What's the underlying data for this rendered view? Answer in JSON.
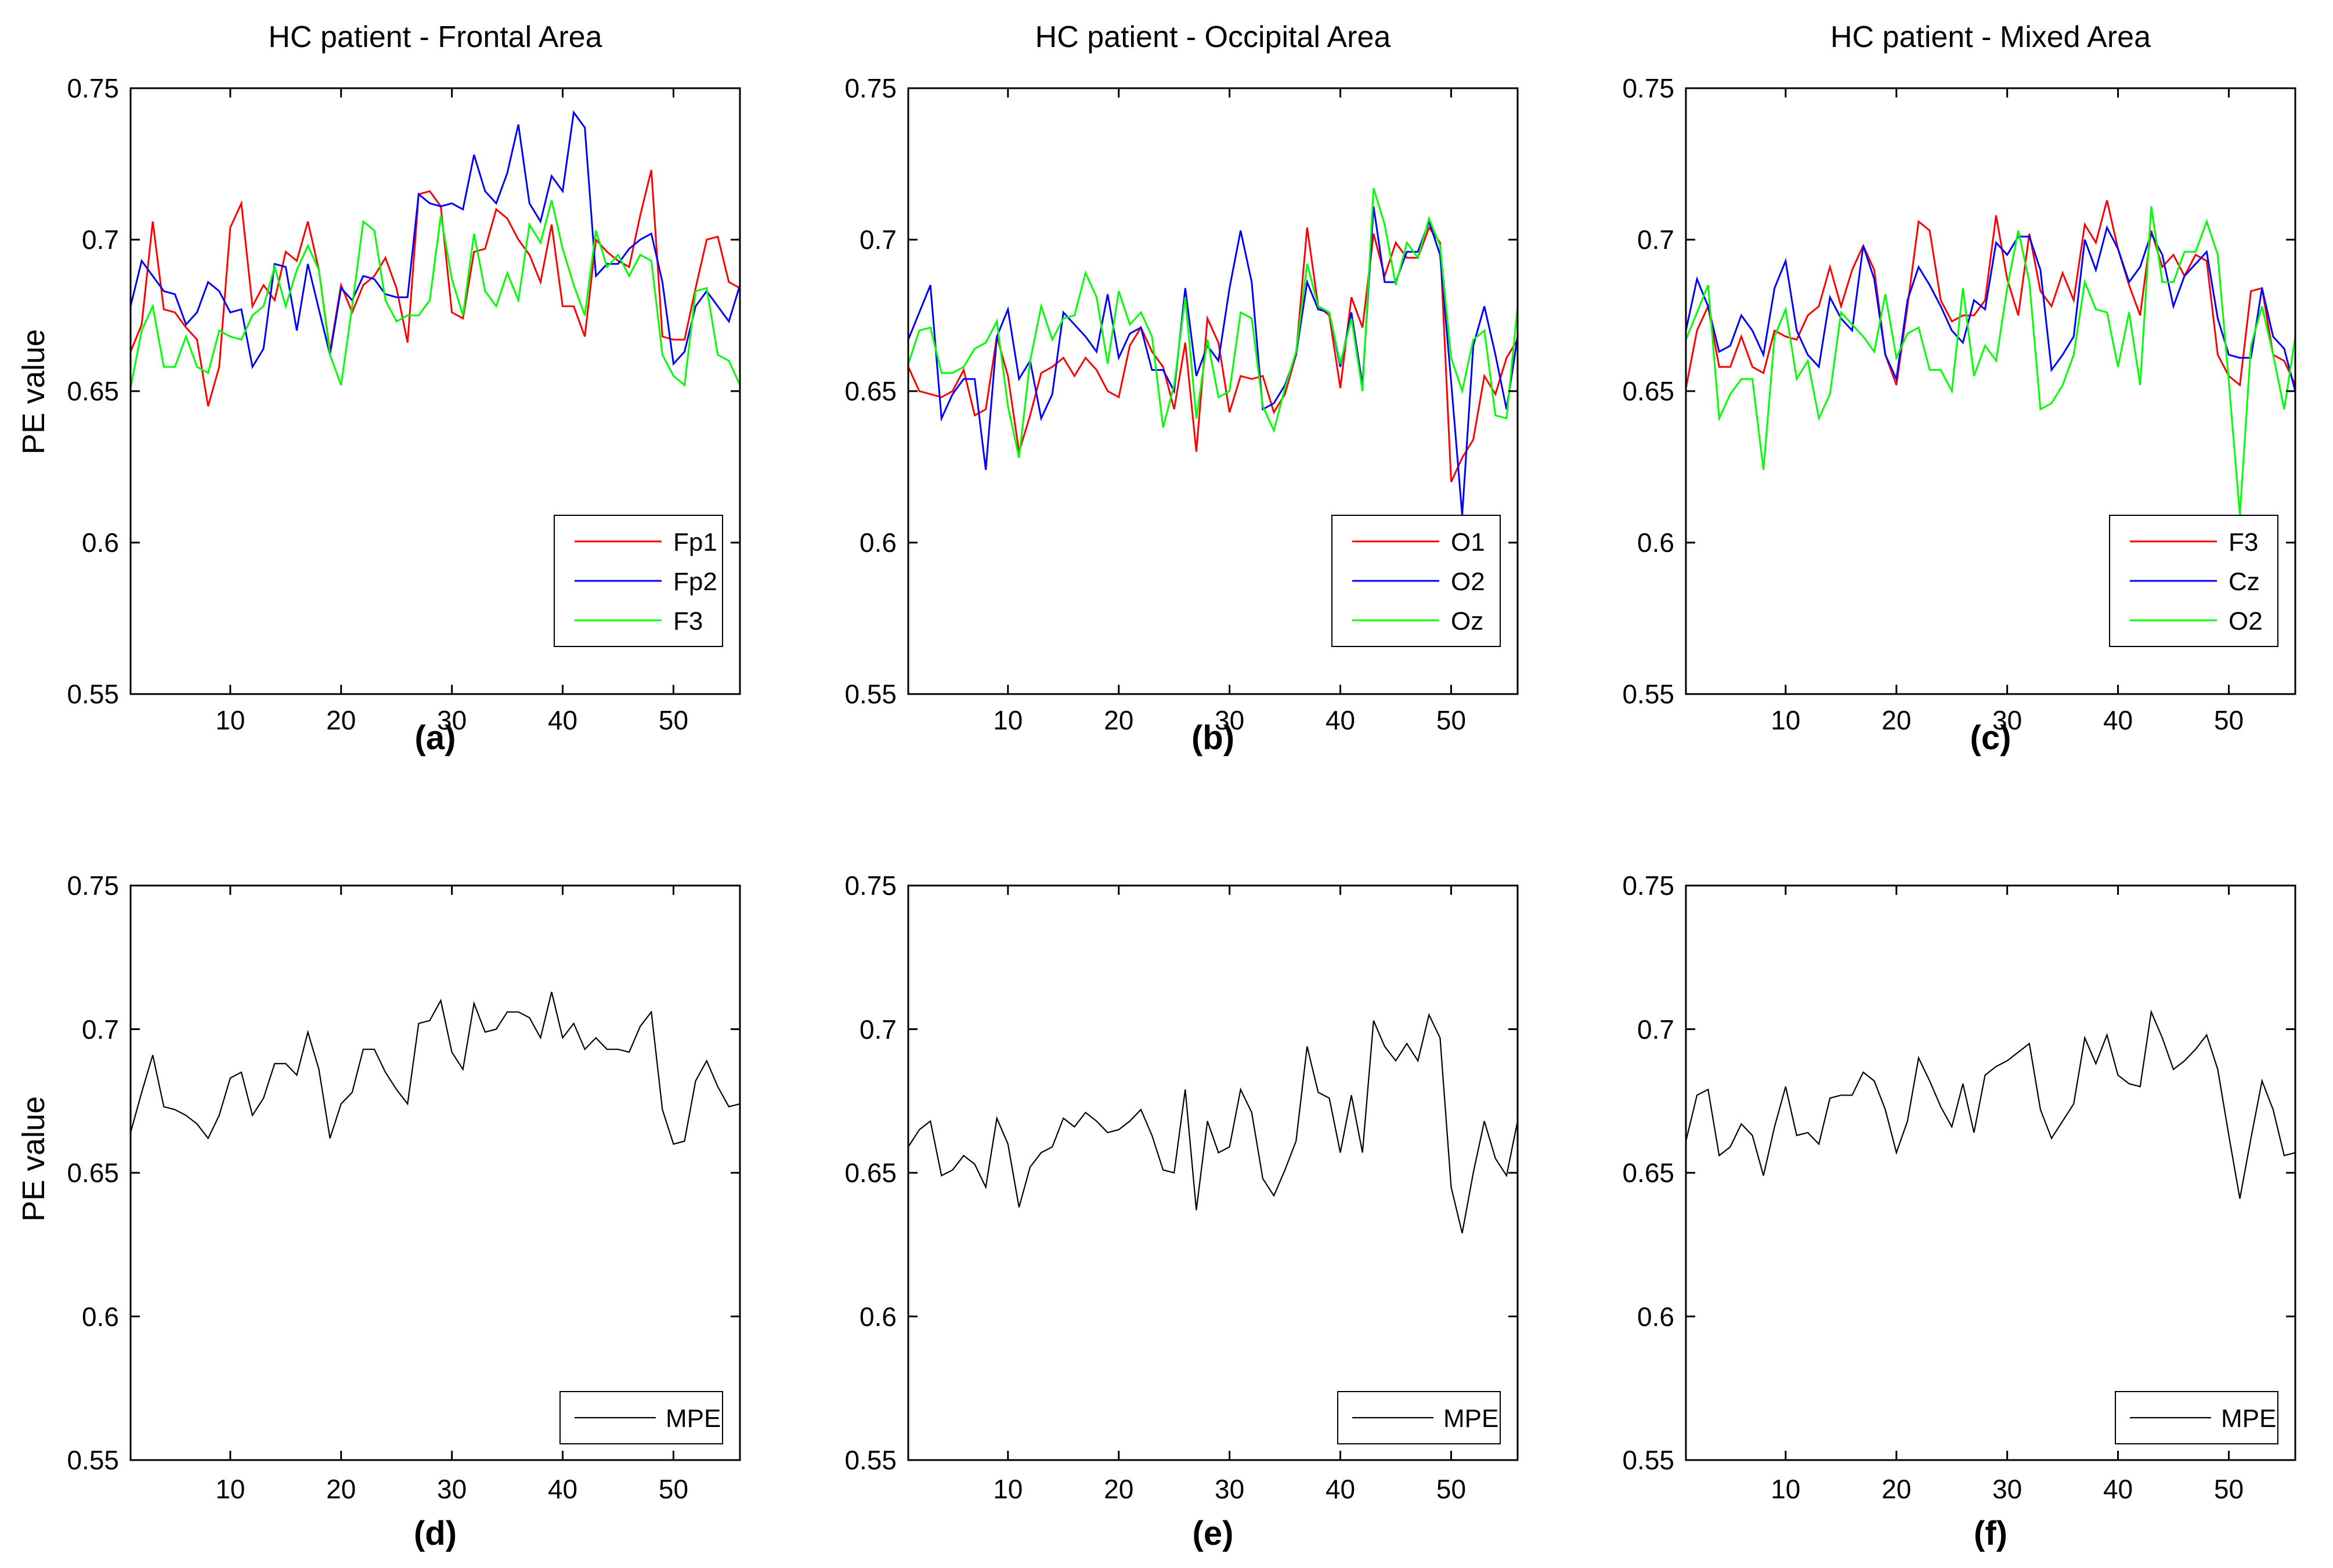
{
  "figure": {
    "background": "#ffffff",
    "axis_color": "#000000",
    "ylabel": "PE value"
  },
  "chart_data": [
    {
      "id": "a",
      "type": "line",
      "title": "HC patient - Frontal Area",
      "letter": "(a)",
      "ylabel": "PE value",
      "xlim": [
        1,
        56
      ],
      "ylim": [
        0.55,
        0.75
      ],
      "xtick_values": [
        10,
        20,
        30,
        40,
        50
      ],
      "xtick_labels": [
        "10",
        "20",
        "30",
        "40",
        "50"
      ],
      "ytick_values": [
        0.55,
        0.6,
        0.65,
        0.7,
        0.75
      ],
      "ytick_labels": [
        "0.55",
        "0.6",
        "0.65",
        "0.7",
        "0.75"
      ],
      "grid": false,
      "legend_position": "bottom-right",
      "series": [
        {
          "name": "Fp1",
          "color": "#ff0000",
          "values": [
            0.663,
            0.672,
            0.706,
            0.677,
            0.676,
            0.671,
            0.667,
            0.645,
            0.658,
            0.704,
            0.712,
            0.678,
            0.685,
            0.68,
            0.696,
            0.693,
            0.706,
            0.69,
            0.663,
            0.685,
            0.676,
            0.685,
            0.688,
            0.694,
            0.684,
            0.666,
            0.715,
            0.716,
            0.711,
            0.676,
            0.674,
            0.696,
            0.697,
            0.71,
            0.707,
            0.7,
            0.695,
            0.686,
            0.705,
            0.678,
            0.678,
            0.668,
            0.7,
            0.696,
            0.693,
            0.691,
            0.708,
            0.723,
            0.668,
            0.667,
            0.667,
            0.684,
            0.7,
            0.701,
            0.686,
            0.684
          ]
        },
        {
          "name": "Fp2",
          "color": "#0000ff",
          "values": [
            0.678,
            0.693,
            0.688,
            0.683,
            0.682,
            0.672,
            0.676,
            0.686,
            0.683,
            0.676,
            0.677,
            0.658,
            0.664,
            0.692,
            0.691,
            0.67,
            0.692,
            0.677,
            0.662,
            0.684,
            0.68,
            0.688,
            0.687,
            0.682,
            0.681,
            0.681,
            0.715,
            0.712,
            0.711,
            0.712,
            0.71,
            0.728,
            0.716,
            0.712,
            0.722,
            0.738,
            0.712,
            0.706,
            0.721,
            0.716,
            0.742,
            0.737,
            0.688,
            0.692,
            0.692,
            0.697,
            0.7,
            0.702,
            0.686,
            0.659,
            0.663,
            0.678,
            0.683,
            0.678,
            0.673,
            0.685
          ]
        },
        {
          "name": "F3",
          "color": "#00ff00",
          "values": [
            0.651,
            0.67,
            0.678,
            0.658,
            0.658,
            0.668,
            0.658,
            0.656,
            0.67,
            0.668,
            0.667,
            0.675,
            0.678,
            0.691,
            0.678,
            0.69,
            0.698,
            0.69,
            0.662,
            0.652,
            0.678,
            0.706,
            0.703,
            0.68,
            0.673,
            0.675,
            0.675,
            0.68,
            0.708,
            0.687,
            0.675,
            0.702,
            0.683,
            0.678,
            0.689,
            0.68,
            0.705,
            0.699,
            0.713,
            0.697,
            0.685,
            0.675,
            0.703,
            0.691,
            0.695,
            0.688,
            0.695,
            0.693,
            0.662,
            0.655,
            0.652,
            0.683,
            0.684,
            0.662,
            0.66,
            0.652
          ]
        }
      ]
    },
    {
      "id": "b",
      "type": "line",
      "title": "HC patient - Occipital Area",
      "letter": "(b)",
      "xlim": [
        1,
        56
      ],
      "ylim": [
        0.55,
        0.75
      ],
      "xtick_values": [
        10,
        20,
        30,
        40,
        50
      ],
      "xtick_labels": [
        "10",
        "20",
        "30",
        "40",
        "50"
      ],
      "ytick_values": [
        0.55,
        0.6,
        0.65,
        0.7,
        0.75
      ],
      "ytick_labels": [
        "0.55",
        "0.6",
        "0.65",
        "0.7",
        "0.75"
      ],
      "grid": false,
      "legend_position": "bottom-right",
      "series": [
        {
          "name": "O1",
          "color": "#ff0000",
          "values": [
            0.658,
            0.65,
            0.649,
            0.648,
            0.65,
            0.657,
            0.642,
            0.644,
            0.668,
            0.655,
            0.63,
            0.642,
            0.656,
            0.658,
            0.661,
            0.655,
            0.661,
            0.657,
            0.65,
            0.648,
            0.665,
            0.671,
            0.663,
            0.658,
            0.644,
            0.666,
            0.63,
            0.674,
            0.666,
            0.643,
            0.655,
            0.654,
            0.655,
            0.643,
            0.649,
            0.662,
            0.704,
            0.678,
            0.675,
            0.651,
            0.681,
            0.671,
            0.702,
            0.688,
            0.699,
            0.694,
            0.694,
            0.704,
            0.699,
            0.62,
            0.628,
            0.634,
            0.655,
            0.649,
            0.661,
            0.667
          ]
        },
        {
          "name": "O2",
          "color": "#0000ff",
          "values": [
            0.667,
            0.676,
            0.685,
            0.641,
            0.649,
            0.654,
            0.654,
            0.624,
            0.668,
            0.677,
            0.654,
            0.66,
            0.641,
            0.649,
            0.676,
            0.672,
            0.668,
            0.663,
            0.682,
            0.661,
            0.669,
            0.671,
            0.657,
            0.657,
            0.65,
            0.684,
            0.655,
            0.665,
            0.66,
            0.684,
            0.703,
            0.686,
            0.644,
            0.646,
            0.652,
            0.662,
            0.686,
            0.677,
            0.676,
            0.658,
            0.676,
            0.652,
            0.711,
            0.686,
            0.686,
            0.696,
            0.696,
            0.706,
            0.695,
            0.653,
            0.609,
            0.665,
            0.678,
            0.662,
            0.644,
            0.668
          ]
        },
        {
          "name": "Oz",
          "color": "#00ff00",
          "values": [
            0.659,
            0.67,
            0.671,
            0.656,
            0.656,
            0.658,
            0.664,
            0.666,
            0.673,
            0.645,
            0.628,
            0.66,
            0.678,
            0.667,
            0.674,
            0.675,
            0.689,
            0.681,
            0.659,
            0.683,
            0.672,
            0.676,
            0.668,
            0.638,
            0.652,
            0.681,
            0.641,
            0.667,
            0.648,
            0.65,
            0.676,
            0.674,
            0.645,
            0.637,
            0.651,
            0.663,
            0.692,
            0.678,
            0.676,
            0.659,
            0.674,
            0.65,
            0.717,
            0.705,
            0.685,
            0.699,
            0.694,
            0.707,
            0.698,
            0.661,
            0.65,
            0.667,
            0.67,
            0.642,
            0.641,
            0.678
          ]
        }
      ]
    },
    {
      "id": "c",
      "type": "line",
      "title": "HC patient - Mixed Area",
      "letter": "(c)",
      "xlim": [
        1,
        56
      ],
      "ylim": [
        0.55,
        0.75
      ],
      "xtick_values": [
        10,
        20,
        30,
        40,
        50
      ],
      "xtick_labels": [
        "10",
        "20",
        "30",
        "40",
        "50"
      ],
      "ytick_values": [
        0.55,
        0.6,
        0.65,
        0.7,
        0.75
      ],
      "ytick_labels": [
        "0.55",
        "0.6",
        "0.65",
        "0.7",
        "0.75"
      ],
      "grid": false,
      "legend_position": "bottom-right",
      "series": [
        {
          "name": "F3",
          "color": "#ff0000",
          "values": [
            0.651,
            0.67,
            0.678,
            0.658,
            0.658,
            0.668,
            0.658,
            0.656,
            0.67,
            0.668,
            0.667,
            0.675,
            0.678,
            0.691,
            0.678,
            0.69,
            0.698,
            0.69,
            0.662,
            0.652,
            0.678,
            0.706,
            0.703,
            0.68,
            0.673,
            0.675,
            0.675,
            0.68,
            0.708,
            0.687,
            0.675,
            0.702,
            0.683,
            0.678,
            0.689,
            0.68,
            0.705,
            0.699,
            0.713,
            0.697,
            0.685,
            0.675,
            0.703,
            0.691,
            0.695,
            0.688,
            0.695,
            0.693,
            0.662,
            0.655,
            0.652,
            0.683,
            0.684,
            0.662,
            0.66,
            0.652
          ]
        },
        {
          "name": "Cz",
          "color": "#0000ff",
          "values": [
            0.67,
            0.687,
            0.678,
            0.663,
            0.665,
            0.675,
            0.67,
            0.662,
            0.684,
            0.693,
            0.67,
            0.662,
            0.658,
            0.681,
            0.674,
            0.67,
            0.698,
            0.687,
            0.662,
            0.654,
            0.68,
            0.691,
            0.685,
            0.678,
            0.67,
            0.666,
            0.68,
            0.677,
            0.699,
            0.695,
            0.701,
            0.701,
            0.69,
            0.657,
            0.662,
            0.668,
            0.7,
            0.69,
            0.704,
            0.697,
            0.686,
            0.691,
            0.702,
            0.695,
            0.678,
            0.688,
            0.692,
            0.696,
            0.674,
            0.662,
            0.661,
            0.661,
            0.684,
            0.668,
            0.664,
            0.65
          ]
        },
        {
          "name": "O2",
          "color": "#00ff00",
          "values": [
            0.667,
            0.676,
            0.685,
            0.641,
            0.649,
            0.654,
            0.654,
            0.624,
            0.668,
            0.677,
            0.654,
            0.66,
            0.641,
            0.649,
            0.676,
            0.672,
            0.668,
            0.663,
            0.682,
            0.661,
            0.669,
            0.671,
            0.657,
            0.657,
            0.65,
            0.684,
            0.655,
            0.665,
            0.66,
            0.684,
            0.703,
            0.686,
            0.644,
            0.646,
            0.652,
            0.662,
            0.686,
            0.677,
            0.676,
            0.658,
            0.676,
            0.652,
            0.711,
            0.686,
            0.686,
            0.696,
            0.696,
            0.706,
            0.695,
            0.653,
            0.609,
            0.665,
            0.678,
            0.662,
            0.644,
            0.668
          ]
        }
      ]
    },
    {
      "id": "d",
      "type": "line",
      "letter": "(d)",
      "ylabel": "PE value",
      "xlim": [
        1,
        56
      ],
      "ylim": [
        0.55,
        0.75
      ],
      "xtick_values": [
        10,
        20,
        30,
        40,
        50
      ],
      "xtick_labels": [
        "10",
        "20",
        "30",
        "40",
        "50"
      ],
      "ytick_values": [
        0.55,
        0.6,
        0.65,
        0.7,
        0.75
      ],
      "ytick_labels": [
        "0.55",
        "0.6",
        "0.65",
        "0.7",
        "0.75"
      ],
      "grid": false,
      "legend_position": "bottom-right",
      "series": [
        {
          "name": "MPE",
          "color": "#000000",
          "values": [
            0.664,
            0.678,
            0.691,
            0.673,
            0.672,
            0.67,
            0.667,
            0.662,
            0.67,
            0.683,
            0.685,
            0.67,
            0.676,
            0.688,
            0.688,
            0.684,
            0.699,
            0.686,
            0.662,
            0.674,
            0.678,
            0.693,
            0.693,
            0.685,
            0.679,
            0.674,
            0.702,
            0.703,
            0.71,
            0.692,
            0.686,
            0.709,
            0.699,
            0.7,
            0.706,
            0.706,
            0.704,
            0.697,
            0.713,
            0.697,
            0.702,
            0.693,
            0.697,
            0.693,
            0.693,
            0.692,
            0.701,
            0.706,
            0.672,
            0.66,
            0.661,
            0.682,
            0.689,
            0.68,
            0.673,
            0.674
          ]
        }
      ]
    },
    {
      "id": "e",
      "type": "line",
      "letter": "(e)",
      "xlim": [
        1,
        56
      ],
      "ylim": [
        0.55,
        0.75
      ],
      "xtick_values": [
        10,
        20,
        30,
        40,
        50
      ],
      "xtick_labels": [
        "10",
        "20",
        "30",
        "40",
        "50"
      ],
      "ytick_values": [
        0.55,
        0.6,
        0.65,
        0.7,
        0.75
      ],
      "ytick_labels": [
        "0.55",
        "0.6",
        "0.65",
        "0.7",
        "0.75"
      ],
      "grid": false,
      "legend_position": "bottom-right",
      "series": [
        {
          "name": "MPE",
          "color": "#000000",
          "values": [
            0.659,
            0.665,
            0.668,
            0.649,
            0.651,
            0.656,
            0.653,
            0.645,
            0.669,
            0.66,
            0.638,
            0.652,
            0.657,
            0.659,
            0.669,
            0.666,
            0.671,
            0.668,
            0.664,
            0.665,
            0.668,
            0.672,
            0.663,
            0.651,
            0.65,
            0.679,
            0.637,
            0.668,
            0.657,
            0.659,
            0.679,
            0.671,
            0.648,
            0.642,
            0.651,
            0.661,
            0.694,
            0.678,
            0.676,
            0.657,
            0.677,
            0.657,
            0.703,
            0.694,
            0.689,
            0.695,
            0.689,
            0.705,
            0.697,
            0.645,
            0.629,
            0.65,
            0.668,
            0.655,
            0.649,
            0.668
          ]
        }
      ]
    },
    {
      "id": "f",
      "type": "line",
      "letter": "(f)",
      "xlim": [
        1,
        56
      ],
      "ylim": [
        0.55,
        0.75
      ],
      "xtick_values": [
        10,
        20,
        30,
        40,
        50
      ],
      "xtick_labels": [
        "10",
        "20",
        "30",
        "40",
        "50"
      ],
      "ytick_values": [
        0.55,
        0.6,
        0.65,
        0.7,
        0.75
      ],
      "ytick_labels": [
        "0.55",
        "0.6",
        "0.65",
        "0.7",
        "0.75"
      ],
      "grid": false,
      "legend_position": "bottom-right",
      "series": [
        {
          "name": "MPE",
          "color": "#000000",
          "values": [
            0.661,
            0.677,
            0.679,
            0.656,
            0.659,
            0.667,
            0.663,
            0.649,
            0.666,
            0.68,
            0.663,
            0.664,
            0.66,
            0.676,
            0.677,
            0.677,
            0.685,
            0.682,
            0.672,
            0.657,
            0.668,
            0.69,
            0.682,
            0.673,
            0.666,
            0.681,
            0.664,
            0.684,
            0.687,
            0.689,
            0.692,
            0.695,
            0.672,
            0.662,
            0.668,
            0.674,
            0.697,
            0.688,
            0.698,
            0.684,
            0.681,
            0.68,
            0.706,
            0.697,
            0.686,
            0.689,
            0.693,
            0.698,
            0.686,
            0.663,
            0.641,
            0.662,
            0.682,
            0.672,
            0.656,
            0.657
          ]
        }
      ]
    }
  ]
}
